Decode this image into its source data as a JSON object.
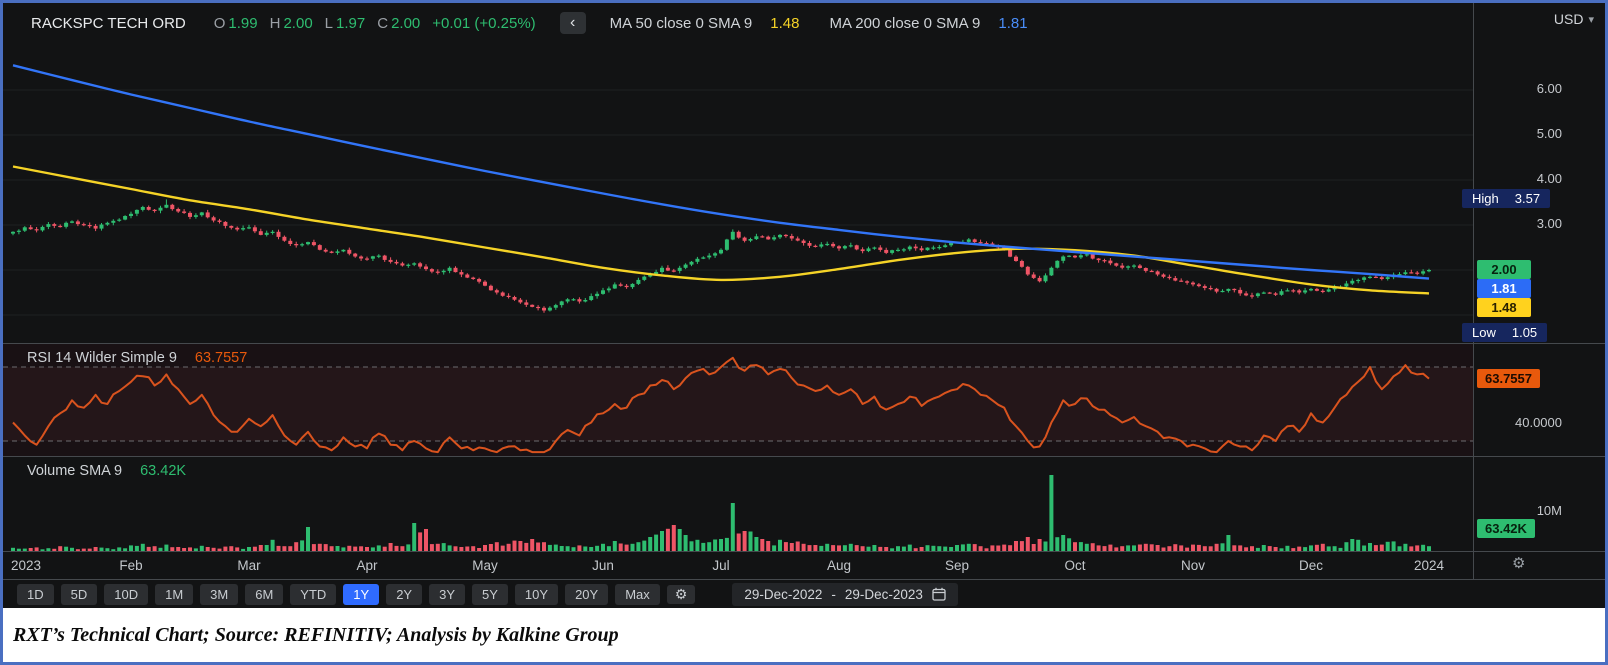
{
  "header": {
    "symbol": "RACKSPC TECH ORD",
    "ohlc": [
      {
        "label": "O",
        "value": "1.99"
      },
      {
        "label": "H",
        "value": "2.00"
      },
      {
        "label": "L",
        "value": "1.97"
      },
      {
        "label": "C",
        "value": "2.00"
      }
    ],
    "change": "+0.01 (+0.25%)",
    "ma50_label": "MA 50 close 0 SMA 9",
    "ma50_value": "1.48",
    "ma200_label": "MA 200 close 0 SMA 9",
    "ma200_value": "1.81",
    "currency": "USD"
  },
  "icons": {
    "chevron_left": "‹",
    "chevron_down": "▾",
    "gear": "⚙"
  },
  "price_axis": {
    "ticks": [
      {
        "label": "6.00"
      },
      {
        "label": "5.00"
      },
      {
        "label": "4.00"
      },
      {
        "label": "3.00"
      }
    ],
    "high_label": "High",
    "high_value": "3.57",
    "last_value": "2.00",
    "ma200_value": "1.81",
    "ma50_value": "1.48",
    "low_label": "Low",
    "low_value": "1.05"
  },
  "rsi": {
    "label": "RSI 14 Wilder Simple 9",
    "value": "63.7557",
    "badge": "63.7557",
    "tick": "40.0000"
  },
  "volume": {
    "label": "Volume SMA 9",
    "value": "63.42K",
    "tick": "10M",
    "badge": "63.42K"
  },
  "x_axis": {
    "ticks": [
      {
        "label": "2023",
        "idx": 0
      },
      {
        "label": "Feb",
        "idx": 10
      },
      {
        "label": "Mar",
        "idx": 20
      },
      {
        "label": "Apr",
        "idx": 30
      },
      {
        "label": "May",
        "idx": 40
      },
      {
        "label": "Jun",
        "idx": 50
      },
      {
        "label": "Jul",
        "idx": 60
      },
      {
        "label": "Aug",
        "idx": 70
      },
      {
        "label": "Sep",
        "idx": 80
      },
      {
        "label": "Oct",
        "idx": 90
      },
      {
        "label": "Nov",
        "idx": 100
      },
      {
        "label": "Dec",
        "idx": 110
      },
      {
        "label": "2024",
        "idx": 120
      }
    ]
  },
  "toolbar": {
    "ranges": [
      "1D",
      "5D",
      "10D",
      "1M",
      "3M",
      "6M",
      "YTD",
      "1Y",
      "2Y",
      "3Y",
      "5Y",
      "10Y",
      "20Y",
      "Max"
    ],
    "active": "1Y",
    "date_start": "29-Dec-2022",
    "date_sep": "-",
    "date_end": "29-Dec-2023"
  },
  "caption": {
    "text": "RXT’s Technical Chart; Source: REFINITIV; Analysis by Kalkine Group"
  },
  "chart_data": [
    {
      "type": "candlestick",
      "title": "RACKSPC TECH ORD daily, 29-Dec-2022 to 29-Dec-2023",
      "x_grid": "121 anchor points, 10 per month Jan-Dec 2023 plus end point",
      "ylim": [
        0.4,
        7.9
      ],
      "yticks": [
        6.0,
        5.0,
        4.0,
        3.0
      ],
      "grid_levels": [
        6,
        5,
        4,
        3,
        2,
        1
      ],
      "high": 3.57,
      "low": 1.05,
      "last": 2.0,
      "up_color": "#2ebd70",
      "down_color": "#ef5566",
      "closes": [
        2.85,
        2.95,
        2.88,
        3.02,
        2.96,
        3.08,
        3.0,
        2.92,
        3.05,
        3.12,
        3.25,
        3.4,
        3.32,
        3.45,
        3.3,
        3.18,
        3.28,
        3.1,
        2.98,
        2.9,
        2.95,
        2.78,
        2.85,
        2.65,
        2.55,
        2.62,
        2.45,
        2.38,
        2.45,
        2.3,
        2.25,
        2.32,
        2.18,
        2.1,
        2.15,
        2.02,
        1.95,
        2.05,
        1.9,
        1.8,
        1.65,
        1.5,
        1.4,
        1.28,
        1.18,
        1.1,
        1.22,
        1.35,
        1.3,
        1.42,
        1.55,
        1.68,
        1.62,
        1.78,
        1.9,
        2.05,
        1.98,
        2.12,
        2.25,
        2.32,
        2.45,
        2.85,
        2.65,
        2.75,
        2.68,
        2.78,
        2.7,
        2.6,
        2.52,
        2.58,
        2.48,
        2.55,
        2.42,
        2.5,
        2.38,
        2.45,
        2.52,
        2.44,
        2.5,
        2.55,
        2.62,
        2.68,
        2.6,
        2.55,
        2.45,
        2.2,
        1.9,
        1.75,
        2.05,
        2.3,
        2.28,
        2.35,
        2.22,
        2.15,
        2.05,
        2.1,
        1.98,
        1.9,
        1.82,
        1.75,
        1.68,
        1.6,
        1.52,
        1.58,
        1.48,
        1.42,
        1.5,
        1.45,
        1.55,
        1.5,
        1.58,
        1.52,
        1.62,
        1.7,
        1.78,
        1.85,
        1.8,
        1.9,
        1.95,
        1.92,
        2.0
      ],
      "series": [
        {
          "id": "ma50-line",
          "name": "MA 50 close 0 SMA 9",
          "color": "#f5d327",
          "anchors_every": 5,
          "values": [
            4.3,
            4.05,
            3.8,
            3.55,
            3.35,
            3.12,
            2.92,
            2.72,
            2.5,
            2.28,
            2.05,
            1.88,
            1.78,
            1.85,
            2.02,
            2.22,
            2.38,
            2.47,
            2.44,
            2.32,
            2.1,
            1.88,
            1.68,
            1.55,
            1.48
          ]
        },
        {
          "id": "ma200-line",
          "name": "MA 200 close 0 SMA 9",
          "color": "#3275f8",
          "anchors_every": 5,
          "values": [
            6.55,
            6.22,
            5.9,
            5.6,
            5.3,
            5.02,
            4.74,
            4.47,
            4.2,
            3.95,
            3.7,
            3.46,
            3.24,
            3.05,
            2.89,
            2.74,
            2.61,
            2.5,
            2.4,
            2.3,
            2.2,
            2.1,
            2.0,
            1.91,
            1.81
          ]
        }
      ]
    },
    {
      "type": "line",
      "name": "RSI 14 Wilder Simple 9",
      "color": "#d9531e",
      "levels": [
        70,
        30
      ],
      "tick": 40,
      "last": 63.7557,
      "values": [
        40,
        33,
        28,
        38,
        45,
        52,
        48,
        55,
        50,
        57,
        62,
        65,
        60,
        66,
        58,
        50,
        55,
        44,
        38,
        35,
        42,
        38,
        44,
        33,
        28,
        35,
        27,
        25,
        32,
        27,
        26,
        34,
        28,
        25,
        30,
        26,
        24,
        32,
        26,
        25,
        26,
        24,
        27,
        25,
        24,
        24,
        30,
        36,
        33,
        40,
        45,
        50,
        48,
        55,
        60,
        63,
        58,
        64,
        68,
        66,
        70,
        75,
        68,
        71,
        66,
        69,
        64,
        60,
        57,
        60,
        55,
        58,
        50,
        54,
        47,
        50,
        54,
        49,
        53,
        56,
        58,
        60,
        55,
        52,
        48,
        38,
        30,
        27,
        40,
        52,
        50,
        53,
        47,
        44,
        40,
        43,
        38,
        35,
        32,
        30,
        28,
        26,
        24,
        30,
        27,
        25,
        33,
        30,
        38,
        35,
        45,
        40,
        48,
        55,
        62,
        70,
        58,
        65,
        71,
        66,
        63.7557
      ]
    },
    {
      "type": "bar",
      "name": "Volume",
      "sma9_label": "63.42K",
      "ytick_label": "10M",
      "values_millions": [
        0.8,
        0.6,
        0.9,
        0.7,
        1.2,
        0.8,
        0.6,
        1.0,
        0.7,
        0.9,
        1.4,
        1.8,
        1.2,
        1.6,
        1.0,
        0.9,
        1.3,
        0.8,
        1.1,
        0.9,
        1.0,
        1.5,
        2.8,
        1.2,
        2.2,
        6.0,
        1.8,
        1.2,
        0.9,
        1.1,
        1.0,
        1.4,
        2.0,
        1.2,
        7.0,
        5.5,
        1.8,
        1.4,
        1.0,
        1.2,
        1.5,
        2.2,
        1.8,
        2.5,
        3.0,
        2.2,
        1.6,
        1.2,
        1.4,
        1.0,
        1.8,
        2.5,
        1.6,
        2.2,
        3.5,
        5.0,
        6.5,
        4.0,
        2.8,
        2.2,
        3.0,
        12.0,
        5.0,
        3.5,
        2.5,
        2.8,
        2.0,
        1.8,
        1.5,
        1.8,
        1.4,
        1.8,
        1.2,
        1.5,
        1.0,
        1.2,
        1.6,
        1.0,
        1.3,
        1.1,
        1.5,
        1.8,
        1.2,
        1.4,
        1.6,
        2.5,
        3.5,
        3.0,
        19.0,
        4.0,
        2.2,
        1.8,
        1.4,
        1.6,
        1.2,
        1.4,
        1.8,
        1.5,
        1.2,
        1.4,
        1.6,
        1.2,
        1.8,
        4.0,
        1.4,
        1.2,
        1.5,
        1.0,
        1.3,
        1.1,
        1.4,
        1.8,
        1.2,
        2.2,
        2.8,
        2.0,
        1.6,
        2.4,
        1.8,
        1.4,
        1.2
      ]
    }
  ]
}
